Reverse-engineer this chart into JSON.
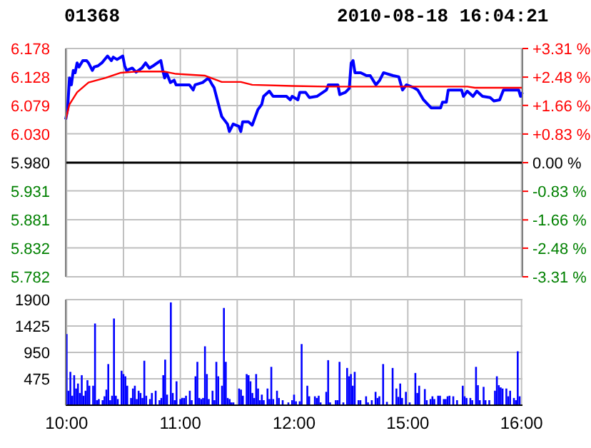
{
  "chart_data": [
    {
      "type": "line",
      "title": "01368",
      "subtitle": "2010-08-18 16:04:21",
      "categories": [
        null,
        null,
        null,
        null,
        null,
        null,
        null,
        null,
        null,
        null,
        null,
        null,
        null,
        null,
        null,
        null,
        null,
        null,
        null,
        null,
        null,
        null,
        null,
        null,
        null,
        null,
        null,
        null,
        null,
        null,
        null,
        null,
        null,
        null,
        null,
        null,
        null,
        null,
        null,
        null,
        null,
        null,
        null,
        null,
        null,
        null,
        null,
        null,
        null,
        null,
        null,
        null,
        null,
        null,
        null,
        null,
        null,
        null,
        null,
        null,
        null,
        null,
        null,
        null,
        null,
        null,
        null,
        null,
        null,
        null,
        null,
        null,
        null,
        null,
        null,
        null,
        null,
        null,
        null,
        null,
        null,
        null,
        null,
        null,
        null,
        null,
        null,
        null,
        null,
        null,
        null,
        null,
        null,
        null,
        null,
        null,
        null,
        null,
        null,
        null,
        null,
        null,
        null,
        null,
        null,
        null,
        null,
        null,
        null,
        null,
        null,
        null,
        null,
        null,
        null,
        null,
        null,
        null,
        null,
        null,
        null,
        null,
        null,
        null,
        null,
        null,
        null,
        null,
        null,
        null,
        null,
        null,
        null,
        null,
        null,
        null,
        null,
        null,
        null,
        null,
        null,
        null,
        null,
        null,
        null,
        null,
        null,
        null,
        null,
        null,
        null,
        null,
        null,
        null,
        null,
        null,
        null,
        null,
        null,
        null,
        null,
        null,
        null,
        null,
        null,
        null,
        null,
        null,
        null,
        null,
        null,
        null,
        null,
        null,
        null,
        null,
        null,
        null,
        null,
        null,
        null,
        null,
        null,
        null,
        null,
        null,
        null,
        null,
        null,
        null,
        null,
        null,
        null,
        null,
        null,
        null,
        null,
        null,
        null,
        null,
        null,
        null,
        null,
        null,
        null,
        null,
        null,
        null,
        null,
        null,
        null,
        null,
        null,
        null,
        null,
        null,
        null,
        null,
        null,
        null,
        null,
        null,
        null,
        null,
        null,
        null,
        null,
        null,
        null,
        null,
        null,
        null,
        null,
        null,
        null,
        null,
        null,
        null,
        null,
        null,
        null
      ],
      "ylim": [
        5.782,
        6.178
      ],
      "yticks": [
        6.178,
        6.128,
        6.079,
        {
          "value": 6.03,
          "label": "6.030"
        },
        {
          "value": 5.98,
          "label": "5.980"
        },
        5.931,
        5.881,
        5.832,
        5.782
      ],
      "y2lim": [
        -3.31,
        3.31
      ],
      "y2ticks": [
        {
          "value": 3.31,
          "label": "+3.31 %"
        },
        {
          "value": 2.48,
          "label": "+2.48 %"
        },
        {
          "value": 1.66,
          "label": "+1.66 %"
        },
        {
          "value": 0.83,
          "label": "+0.83 %"
        },
        {
          "value": 0,
          "label": "0.00 %"
        },
        {
          "value": -0.83,
          "label": "-0.83 %"
        },
        {
          "value": -1.66,
          "label": "-1.66 %"
        },
        {
          "value": -2.48,
          "label": "-2.48 %"
        },
        {
          "value": -3.31,
          "label": "-3.31 %"
        }
      ],
      "tick_labels": "y",
      "grid": true,
      "marker": "none",
      "ref_lines": [
        {
          "axis": "y",
          "value": 5.98,
          "color": "#000000"
        }
      ],
      "series": [
        {
          "color": "#0000ff",
          "values": [
            6.055,
            6.072,
            6.127,
            6.115,
            6.14,
            6.136,
            6.153,
            6.146,
            null,
            6.157,
            null,
            6.157,
            6.153,
            null,
            6.14,
            6.146,
            null,
            6.148,
            null,
            6.153,
            null,
            6.161,
            6.165,
            null,
            6.157,
            6.163,
            null,
            6.159,
            null,
            null,
            6.165,
            6.148,
            6.14,
            null,
            null,
            6.144,
            null,
            6.137,
            null,
            null,
            6.144,
            null,
            6.153,
            null,
            6.144,
            null,
            6.148,
            null,
            null,
            6.155,
            6.157,
            6.14,
            6.127,
            6.136,
            null,
            6.119,
            null,
            6.123,
            6.115,
            null,
            null,
            6.115,
            null,
            null,
            null,
            6.115,
            null,
            6.106,
            6.115,
            null,
            null,
            null,
            6.119,
            null,
            null,
            6.127,
            null,
            6.115,
            6.11,
            null,
            null,
            6.072,
            6.06,
            null,
            null,
            6.047,
            6.034,
            null,
            6.047,
            null,
            null,
            6.043,
            6.034,
            6.051,
            null,
            null,
            6.051,
            null,
            6.045,
            null,
            null,
            6.072,
            null,
            6.081,
            6.095,
            null,
            null,
            6.104,
            null,
            6.095,
            null,
            null,
            null,
            null,
            null,
            null,
            6.095,
            null,
            6.089,
            6.095,
            null,
            null,
            6.089,
            6.102,
            null,
            null,
            6.102,
            null,
            6.093,
            null,
            null,
            null,
            6.095,
            null,
            null,
            null,
            null,
            6.106,
            6.115,
            null,
            null,
            null,
            null,
            6.115,
            6.098,
            null,
            null,
            6.102,
            null,
            6.109,
            6.153,
            6.157,
            6.136,
            null,
            null,
            6.136,
            null,
            null,
            6.131,
            null,
            6.131,
            null,
            null,
            6.115,
            null,
            6.123,
            null,
            6.136,
            null,
            null,
            null,
            null,
            6.131,
            null,
            null,
            6.129,
            null,
            6.106,
            null,
            6.115,
            null,
            null,
            null,
            6.11,
            null,
            6.106,
            null,
            null,
            6.089,
            null,
            null,
            null,
            6.075,
            null,
            null,
            null,
            null,
            6.075,
            6.085,
            null,
            6.085,
            6.106,
            null,
            null,
            null,
            null,
            null,
            null,
            6.106,
            6.095,
            null,
            6.104,
            null,
            null,
            6.095,
            null,
            6.104,
            null,
            null,
            6.095,
            null,
            null,
            null,
            6.093,
            null,
            6.087,
            null,
            null,
            6.089,
            null,
            6.106,
            null,
            null,
            null,
            null,
            null,
            null,
            null,
            6.106,
            6.095,
            6.102
          ]
        },
        {
          "color": "#ff0000",
          "values": [
            6.055,
            null,
            6.081,
            null,
            null,
            null,
            6.102,
            null,
            null,
            null,
            null,
            null,
            6.119,
            null,
            null,
            null,
            null,
            null,
            null,
            null,
            null,
            6.127,
            null,
            null,
            null,
            null,
            null,
            null,
            null,
            6.136,
            null,
            null,
            null,
            null,
            null,
            null,
            null,
            6.138,
            null,
            null,
            null,
            null,
            null,
            null,
            null,
            null,
            null,
            null,
            null,
            null,
            null,
            null,
            6.138,
            null,
            null,
            null,
            null,
            null,
            6.134,
            null,
            null,
            null,
            null,
            null,
            null,
            null,
            null,
            null,
            null,
            null,
            null,
            null,
            null,
            6.131,
            null,
            null,
            null,
            null,
            null,
            null,
            null,
            null,
            6.12,
            null,
            null,
            null,
            null,
            null,
            null,
            null,
            null,
            null,
            6.12,
            null,
            null,
            null,
            null,
            null,
            6.115,
            null,
            null,
            null,
            null,
            null,
            null,
            null,
            null,
            null,
            null,
            null,
            null,
            null,
            null,
            null,
            null,
            null,
            null,
            null,
            null,
            6.113,
            null,
            null,
            null,
            null,
            null,
            null,
            null,
            null,
            null,
            null,
            null,
            null,
            null,
            null,
            null,
            null,
            null,
            6.112,
            null,
            null,
            null,
            null,
            null,
            null,
            null,
            null,
            null,
            null,
            null,
            null,
            null,
            null,
            null,
            null,
            null,
            null,
            null,
            null,
            null,
            null,
            null,
            null,
            null,
            null,
            null,
            null,
            null,
            null,
            null,
            null,
            null,
            null,
            null,
            null,
            null,
            null,
            null,
            null,
            null,
            null,
            null,
            null,
            null,
            null,
            null,
            null,
            null,
            null,
            null,
            null,
            null,
            null,
            null,
            null,
            null,
            null,
            null,
            null,
            null,
            null,
            null,
            null,
            null,
            null,
            null,
            null,
            null,
            null,
            null,
            null,
            null,
            6.112,
            null,
            null,
            null,
            6.11,
            null,
            null,
            null,
            null,
            null,
            null,
            null,
            null,
            null,
            null,
            null,
            null,
            null,
            null,
            null,
            null,
            null,
            null,
            null,
            null,
            null,
            null,
            null,
            null,
            6.11
          ]
        }
      ]
    },
    {
      "type": "bar",
      "categories": [
        "10:00",
        null,
        null,
        null,
        null,
        null,
        null,
        null,
        null,
        null,
        null,
        null,
        null,
        null,
        null,
        null,
        null,
        null,
        null,
        null,
        null,
        null,
        null,
        null,
        null,
        null,
        null,
        null,
        null,
        null,
        null,
        null,
        null,
        null,
        null,
        null,
        null,
        null,
        null,
        null,
        null,
        null,
        null,
        null,
        null,
        null,
        null,
        null,
        null,
        null,
        null,
        null,
        null,
        null,
        null,
        null,
        null,
        null,
        null,
        null,
        "11:00",
        null,
        null,
        null,
        null,
        null,
        null,
        null,
        null,
        null,
        null,
        null,
        null,
        null,
        null,
        null,
        null,
        null,
        null,
        null,
        null,
        null,
        null,
        null,
        null,
        null,
        null,
        null,
        null,
        null,
        null,
        null,
        null,
        null,
        null,
        null,
        null,
        null,
        null,
        null,
        null,
        null,
        null,
        null,
        null,
        null,
        null,
        null,
        null,
        null,
        null,
        null,
        null,
        null,
        null,
        null,
        null,
        null,
        null,
        null,
        "12:00",
        null,
        null,
        null,
        null,
        null,
        null,
        null,
        null,
        null,
        null,
        null,
        null,
        null,
        null,
        null,
        null,
        null,
        null,
        null,
        null,
        null,
        null,
        null,
        null,
        null,
        null,
        null,
        null,
        null,
        null,
        null,
        null,
        null,
        null,
        null,
        null,
        null,
        null,
        null,
        null,
        null,
        null,
        null,
        null,
        null,
        null,
        null,
        null,
        null,
        null,
        null,
        null,
        null,
        null,
        null,
        null,
        null,
        null,
        null,
        "15:00",
        null,
        null,
        null,
        null,
        null,
        null,
        null,
        null,
        null,
        null,
        null,
        null,
        null,
        null,
        null,
        null,
        null,
        null,
        null,
        null,
        null,
        null,
        null,
        null,
        null,
        null,
        null,
        null,
        null,
        null,
        null,
        null,
        null,
        null,
        null,
        null,
        null,
        null,
        null,
        null,
        null,
        null,
        null,
        null,
        null,
        null,
        null,
        null,
        null,
        null,
        null,
        null,
        null,
        null,
        null,
        null,
        null,
        null,
        null,
        "16:00"
      ],
      "ylim": [
        0,
        1900
      ],
      "yticks": [
        475,
        950,
        1425,
        1900
      ],
      "grid": true,
      "color": "#0000ff",
      "values": [
        1280,
        260,
        600,
        170,
        540,
        300,
        390,
        220,
        540,
        170,
        260,
        450,
        350,
        null,
        350,
        1470,
        90,
        110,
        null,
        90,
        160,
        280,
        740,
        90,
        170,
        1560,
        170,
        110,
        null,
        620,
        560,
        520,
        350,
        null,
        130,
        300,
        350,
        110,
        260,
        220,
        130,
        800,
        170,
        null,
        110,
        220,
        null,
        260,
        null,
        90,
        130,
        540,
        820,
        190,
        null,
        1850,
        220,
        90,
        430,
        null,
        110,
        130,
        130,
        170,
        null,
        260,
        90,
        null,
        520,
        780,
        130,
        110,
        130,
        1060,
        560,
        110,
        null,
        260,
        90,
        780,
        520,
        null,
        350,
        1750,
        780,
        130,
        110,
        50,
        50,
        null,
        null,
        300,
        280,
        170,
        null,
        560,
        540,
        430,
        220,
        130,
        560,
        300,
        90,
        190,
        90,
        null,
        300,
        110,
        690,
        110,
        null,
        260,
        130,
        null,
        90,
        null,
        null,
        50,
        null,
        90,
        190,
        70,
        null,
        70,
        1100,
        null,
        null,
        350,
        160,
        null,
        null,
        160,
        130,
        170,
        50,
        null,
        null,
        240,
        810,
        50,
        null,
        null,
        90,
        90,
        780,
        null,
        50,
        null,
        670,
        520,
        560,
        350,
        600,
        null,
        90,
        90,
        null,
        null,
        160,
        50,
        null,
        90,
        null,
        240,
        130,
        160,
        null,
        740,
        null,
        60,
        null,
        null,
        670,
        null,
        300,
        150,
        390,
        130,
        null,
        240,
        null,
        50,
        null,
        null,
        580,
        220,
        350,
        null,
        null,
        290,
        90,
        null,
        110,
        160,
        110,
        null,
        170,
        170,
        null,
        110,
        110,
        160,
        170,
        null,
        160,
        null,
        90,
        null,
        null,
        350,
        160,
        130,
        null,
        130,
        90,
        null,
        690,
        360,
        90,
        null,
        330,
        90,
        null,
        90,
        null,
        null,
        260,
        520,
        360,
        320,
        300,
        null,
        300,
        160,
        260,
        null,
        130,
        90,
        970,
        160,
        null
      ]
    }
  ]
}
